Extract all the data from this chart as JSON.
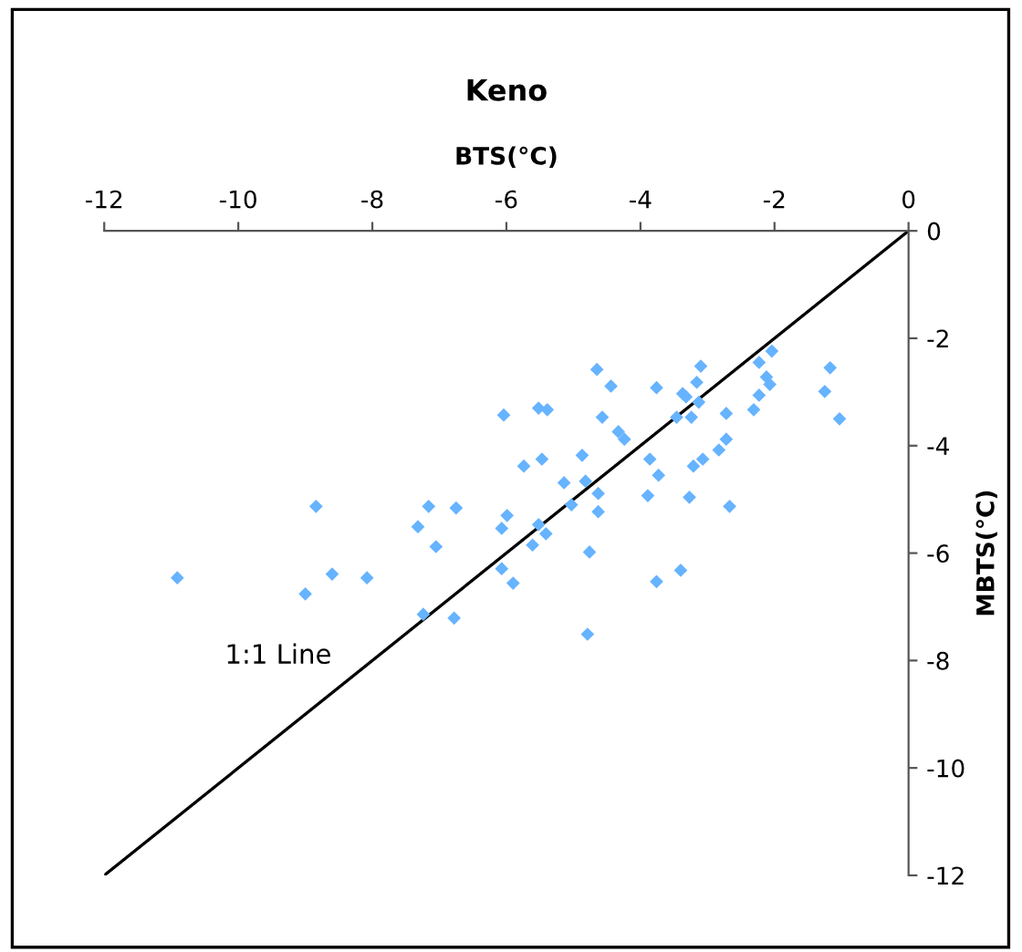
{
  "chart_data": {
    "type": "scatter",
    "title": "Keno",
    "xlabel": "BTS(°C)",
    "ylabel": "MBTS(°C)",
    "xlim": [
      -12,
      0
    ],
    "xticks": [
      -12,
      -10,
      -8,
      -6,
      -4,
      -2,
      0
    ],
    "ylim": [
      -12,
      0
    ],
    "yticks": [
      -12,
      -10,
      -8,
      -6,
      -4,
      -2,
      0
    ],
    "grid": false,
    "legend": false,
    "annotations": [
      "1:1 Line"
    ],
    "series": [
      {
        "color": "#66b3ff",
        "marker": "diamond",
        "x": [
          -10.91,
          -8.84,
          -9.0,
          -8.6,
          -8.08,
          -7.32,
          -7.16,
          -6.75,
          -7.05,
          -7.24,
          -6.78,
          -6.04,
          -5.74,
          -5.99,
          -6.07,
          -6.07,
          -5.9,
          -5.52,
          -5.39,
          -4.65,
          -4.44,
          -3.76,
          -3.37,
          -3.32,
          -3.1,
          -3.16,
          -3.13,
          -3.46,
          -3.24,
          -2.72,
          -2.23,
          -2.04,
          -2.12,
          -2.07,
          -2.23,
          -2.31,
          -1.17,
          -1.25,
          -1.03,
          -4.57,
          -4.33,
          -4.24,
          -5.47,
          -4.87,
          -5.14,
          -4.82,
          -5.03,
          -4.63,
          -4.63,
          -5.52,
          -5.41,
          -5.61,
          -4.76,
          -4.79,
          -3.86,
          -3.73,
          -3.89,
          -3.27,
          -3.21,
          -3.07,
          -2.83,
          -2.72,
          -2.67,
          -3.76,
          -3.4
        ],
        "values": [
          -6.46,
          -5.13,
          -6.76,
          -6.39,
          -6.46,
          -5.51,
          -5.13,
          -5.16,
          -5.88,
          -7.14,
          -7.21,
          -3.43,
          -4.38,
          -5.3,
          -5.54,
          -6.29,
          -6.56,
          -3.3,
          -3.33,
          -2.58,
          -2.89,
          -2.92,
          -3.03,
          -3.09,
          -2.52,
          -2.82,
          -3.19,
          -3.47,
          -3.47,
          -3.4,
          -2.45,
          -2.24,
          -2.72,
          -2.86,
          -3.06,
          -3.33,
          -2.55,
          -2.99,
          -3.5,
          -3.47,
          -3.74,
          -3.88,
          -4.25,
          -4.18,
          -4.69,
          -4.66,
          -5.1,
          -4.89,
          -5.23,
          -5.47,
          -5.64,
          -5.85,
          -5.98,
          -7.51,
          -4.25,
          -4.55,
          -4.93,
          -4.96,
          -4.38,
          -4.25,
          -4.08,
          -3.88,
          -5.13,
          -6.53,
          -6.32
        ]
      },
      {
        "type": "line",
        "color": "#000000",
        "marker": "none",
        "line_style": "solid",
        "x": [
          -12,
          0
        ],
        "values": [
          -12,
          0
        ]
      }
    ]
  }
}
